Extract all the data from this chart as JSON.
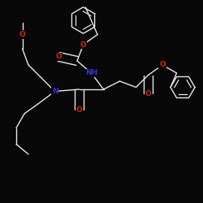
{
  "bg_color": "#080808",
  "bond_color": "#e8e8e8",
  "atom_colors": {
    "O": "#dd2200",
    "N": "#3333dd",
    "C": "#e8e8e8"
  },
  "font_size": 6.5,
  "lw": 1.0
}
